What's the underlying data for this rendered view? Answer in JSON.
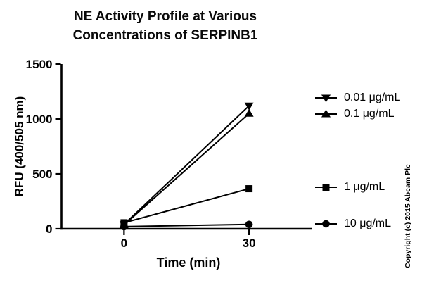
{
  "title": {
    "line1": "NE Activity Profile at Various",
    "line2": "Concentrations of SERPINB1"
  },
  "y_axis_label": "RFU (400/505 nm)",
  "x_axis_label": "Time (min)",
  "copyright": "Copyright (c) 2015 Abcam Plc",
  "chart_data": {
    "type": "line",
    "title": "NE Activity Profile at Various Concentrations of SERPINB1",
    "xlabel": "Time (min)",
    "ylabel": "RFU (400/505 nm)",
    "x": [
      0,
      30
    ],
    "series": [
      {
        "name": "0.01 μg/mL",
        "marker": "triangle-down",
        "values": [
          40,
          1120
        ]
      },
      {
        "name": "0.1 μg/mL",
        "marker": "triangle-up",
        "values": [
          35,
          1050
        ]
      },
      {
        "name": "1 μg/mL",
        "marker": "square",
        "values": [
          55,
          365
        ]
      },
      {
        "name": "10 μg/mL",
        "marker": "circle",
        "values": [
          20,
          40
        ]
      }
    ],
    "xlim": [
      -15,
      45
    ],
    "ylim": [
      0,
      1500
    ],
    "x_ticks": [
      0,
      30
    ],
    "y_ticks": [
      0,
      500,
      1000,
      1500
    ],
    "grid": false,
    "legend_position": "right",
    "line_color": "#000000",
    "background": "#ffffff"
  }
}
